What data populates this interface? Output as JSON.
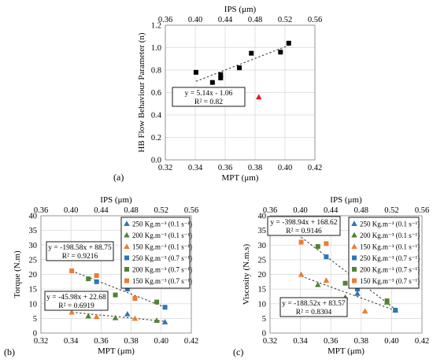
{
  "colors": {
    "black": "#000000",
    "red": "#e31a1c",
    "blue": "#2e75b6",
    "green": "#548235",
    "orange": "#ed7d31"
  },
  "chart_data": [
    {
      "id": "a",
      "panel_label": "(a)",
      "type": "scatter",
      "xlabel": "MPT (μm)",
      "x2label": "IPS (μm)",
      "ylabel": "HB Flow Behaviour Parameter (n)",
      "xlim": [
        0.32,
        0.42
      ],
      "x2lim": [
        0.36,
        0.56
      ],
      "ylim": [
        0,
        1.2
      ],
      "xticks": [
        "0.32",
        "0.34",
        "0.36",
        "0.38",
        "0.40",
        "0.42"
      ],
      "x2ticks": [
        "0.36",
        "0.40",
        "0.44",
        "0.48",
        "0.52",
        "0.56"
      ],
      "yticks": [
        "0.0",
        "0.2",
        "0.4",
        "0.6",
        "0.8",
        "1.0",
        "1.2"
      ],
      "series": [
        {
          "marker": "square",
          "color": "#000000",
          "points": [
            [
              0.3405,
              0.78
            ],
            [
              0.3515,
              0.69
            ],
            [
              0.357,
              0.73
            ],
            [
              0.357,
              0.76
            ],
            [
              0.3695,
              0.82
            ],
            [
              0.3775,
              0.95
            ],
            [
              0.397,
              0.96
            ],
            [
              0.4025,
              1.04
            ]
          ]
        },
        {
          "marker": "triangle",
          "color": "#e31a1c",
          "points": [
            [
              0.3825,
              0.56
            ]
          ]
        }
      ],
      "trendlines": [
        {
          "x": [
            0.3405,
            0.4025
          ],
          "y": [
            0.7,
            1.02
          ]
        }
      ],
      "annotations": [
        {
          "lines": [
            "y = 5.14x - 1.06",
            "R² = 0.82"
          ]
        }
      ]
    },
    {
      "id": "b",
      "panel_label": "(b)",
      "type": "scatter",
      "xlabel": "MPT (μm)",
      "x2label": "IPS (μm)",
      "ylabel": "Torque (N.m)",
      "xlim": [
        0.32,
        0.42
      ],
      "x2lim": [
        0.36,
        0.56
      ],
      "ylim": [
        0,
        40
      ],
      "xticks": [
        "0.32",
        "0.34",
        "0.36",
        "0.38",
        "0.40",
        "0.42"
      ],
      "x2ticks": [
        "0.36",
        "0.40",
        "0.44",
        "0.48",
        "0.52",
        "0.56"
      ],
      "yticks": [
        "0",
        "5",
        "10",
        "15",
        "20",
        "25",
        "30",
        "35",
        "40"
      ],
      "series": [
        {
          "name": "250 Kg.m⁻³ (0.1 s⁻¹)",
          "marker": "triangle",
          "color": "#2e75b6",
          "points": [
            [
              0.3775,
              6.5
            ],
            [
              0.4025,
              3.8
            ]
          ]
        },
        {
          "name": "200 Kg.m⁻³ (0.1 s⁻¹)",
          "marker": "triangle",
          "color": "#548235",
          "points": [
            [
              0.3515,
              5.8
            ],
            [
              0.3695,
              5.2
            ],
            [
              0.397,
              4.3
            ]
          ]
        },
        {
          "name": "150 Kg.m⁻³ (0.1 s⁻¹)",
          "marker": "triangle",
          "color": "#ed7d31",
          "points": [
            [
              0.3405,
              7.1
            ],
            [
              0.357,
              5.6
            ],
            [
              0.3825,
              5.0
            ]
          ]
        },
        {
          "name": "250 Kg.m⁻³ (0.7 s⁻¹)",
          "marker": "square",
          "color": "#2e75b6",
          "points": [
            [
              0.357,
              17.5
            ],
            [
              0.3775,
              15.0
            ],
            [
              0.4025,
              8.8
            ]
          ]
        },
        {
          "name": "200 Kg.m⁻³ (0.7 s⁻¹)",
          "marker": "square",
          "color": "#548235",
          "points": [
            [
              0.3515,
              18.5
            ],
            [
              0.3695,
              13.0
            ],
            [
              0.397,
              10.6
            ]
          ]
        },
        {
          "name": "150 Kg.m⁻³ (0.7 s⁻¹)",
          "marker": "square",
          "color": "#ed7d31",
          "points": [
            [
              0.3405,
              21.2
            ],
            [
              0.357,
              19.6
            ],
            [
              0.3825,
              11.8
            ]
          ]
        }
      ],
      "trendlines": [
        {
          "x": [
            0.3405,
            0.4025
          ],
          "y": [
            21.2,
            8.8
          ]
        },
        {
          "x": [
            0.3405,
            0.4025
          ],
          "y": [
            7.1,
            4.0
          ]
        }
      ],
      "annotations": [
        {
          "lines": [
            "y = -198.58x + 88.75",
            "R² = 0.9216"
          ]
        },
        {
          "lines": [
            "y = -45.98x + 22.68",
            "R² = 0.6919"
          ]
        }
      ]
    },
    {
      "id": "c",
      "panel_label": "(c)",
      "type": "scatter",
      "xlabel": "MPT (μm)",
      "x2label": "IPS (μm)",
      "ylabel": "Viscosity (N.m.s)",
      "xlim": [
        0.32,
        0.42
      ],
      "x2lim": [
        0.36,
        0.56
      ],
      "ylim": [
        0,
        40
      ],
      "xticks": [
        "0.32",
        "0.34",
        "0.36",
        "0.38",
        "0.40",
        "0.42"
      ],
      "x2ticks": [
        "0.36",
        "0.40",
        "0.44",
        "0.48",
        "0.52",
        "0.56"
      ],
      "yticks": [
        "0",
        "5",
        "10",
        "15",
        "20",
        "25",
        "30",
        "35",
        "40"
      ],
      "series": [
        {
          "name": "250 Kg.m⁻³ (0.1 s⁻¹)",
          "marker": "triangle",
          "color": "#2e75b6",
          "points": [
            [
              0.3775,
              13.5
            ],
            [
              0.4025,
              7.8
            ]
          ]
        },
        {
          "name": "200 Kg.m⁻³ (0.1 s⁻¹)",
          "marker": "triangle",
          "color": "#548235",
          "points": [
            [
              0.3515,
              16.5
            ],
            [
              0.3695,
              12.2
            ],
            [
              0.397,
              10.5
            ]
          ]
        },
        {
          "name": "150 Kg.m⁻³ (0.1 s⁻¹)",
          "marker": "triangle",
          "color": "#ed7d31",
          "points": [
            [
              0.3405,
              20.0
            ],
            [
              0.357,
              18.0
            ],
            [
              0.3825,
              7.5
            ]
          ]
        },
        {
          "name": "250 Kg.m⁻³ (0.7 s⁻¹)",
          "marker": "square",
          "color": "#2e75b6",
          "points": [
            [
              0.357,
              26.0
            ],
            [
              0.3775,
              15.0
            ],
            [
              0.4025,
              7.8
            ]
          ]
        },
        {
          "name": "200 Kg.m⁻³ (0.7 s⁻¹)",
          "marker": "square",
          "color": "#548235",
          "points": [
            [
              0.3515,
              29.5
            ],
            [
              0.3695,
              17.0
            ],
            [
              0.397,
              11.0
            ]
          ]
        },
        {
          "name": "150 Kg.m⁻³ (0.7 s⁻¹)",
          "marker": "square",
          "color": "#ed7d31",
          "points": [
            [
              0.3405,
              31.0
            ],
            [
              0.357,
              30.5
            ],
            [
              0.3825,
              18.0
            ]
          ]
        }
      ],
      "trendlines": [
        {
          "x": [
            0.3405,
            0.4025
          ],
          "y": [
            32.7,
            8.1
          ]
        },
        {
          "x": [
            0.3405,
            0.4025
          ],
          "y": [
            19.4,
            7.7
          ]
        }
      ],
      "annotations": [
        {
          "lines": [
            "y = -398.94x + 168.62",
            "R² = 0.9146"
          ]
        },
        {
          "lines": [
            "y = -188.52x + 83.57",
            "R² = 0.8304"
          ]
        }
      ]
    }
  ]
}
